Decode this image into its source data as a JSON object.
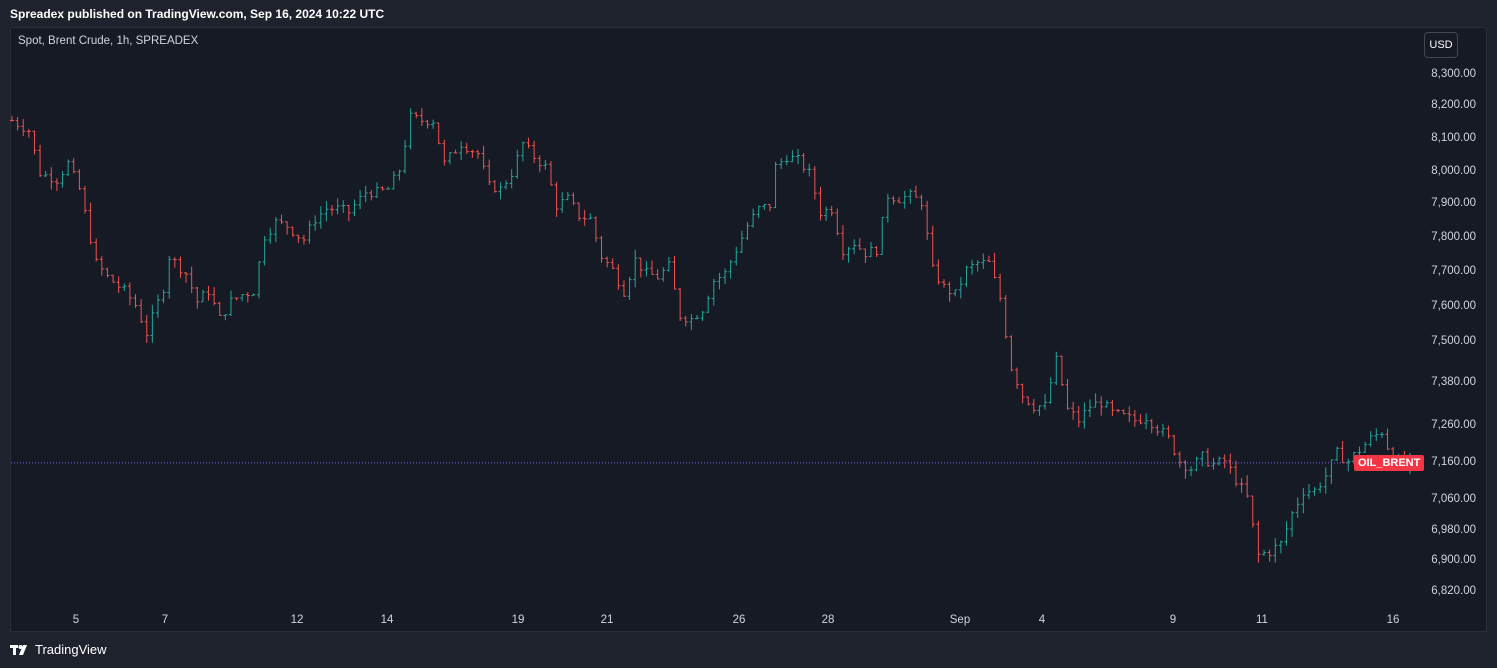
{
  "header": {
    "title": "Spreadex published on TradingView.com, Sep 16, 2024 10:22 UTC"
  },
  "legend": {
    "text": "Spot, Brent Crude, 1h, SPREADEX"
  },
  "currency_button": {
    "label": "USD"
  },
  "footer": {
    "brand": "TradingView",
    "logo_icon": "tradingview-logo-icon"
  },
  "price_tag": {
    "label": "OIL_BRENT",
    "color": "#f23645"
  },
  "colors": {
    "up": "#26a69a",
    "down": "#ef5350",
    "last_line": "#7b6cf6",
    "background": "#161a25"
  },
  "chart_data": {
    "type": "ohlc-bar",
    "title": "Spot, Brent Crude, 1h, SPREADEX",
    "y_ticks": [
      "8,300.00",
      "8,200.00",
      "8,100.00",
      "8,000.00",
      "7,900.00",
      "7,800.00",
      "7,700.00",
      "7,600.00",
      "7,500.00",
      "7,380.00",
      "7,260.00",
      "7,160.00",
      "7,060.00",
      "6,980.00",
      "6,900.00",
      "6,820.00"
    ],
    "x_ticks": [
      "5",
      "7",
      "12",
      "14",
      "19",
      "21",
      "26",
      "28",
      "Sep",
      "4",
      "9",
      "11",
      "16"
    ],
    "last_price": 7155,
    "price_path": [
      [
        0,
        8150
      ],
      [
        3,
        8120
      ],
      [
        5,
        7990
      ],
      [
        8,
        7970
      ],
      [
        10,
        8020
      ],
      [
        12,
        7940
      ],
      [
        15,
        7720
      ],
      [
        17,
        7680
      ],
      [
        20,
        7640
      ],
      [
        22,
        7600
      ],
      [
        24,
        7520
      ],
      [
        27,
        7650
      ],
      [
        28,
        7740
      ],
      [
        31,
        7690
      ],
      [
        33,
        7610
      ],
      [
        35,
        7640
      ],
      [
        37,
        7560
      ],
      [
        39,
        7610
      ],
      [
        41,
        7630
      ],
      [
        43,
        7640
      ],
      [
        45,
        7800
      ],
      [
        47,
        7840
      ],
      [
        49,
        7830
      ],
      [
        51,
        7800
      ],
      [
        52,
        7790
      ],
      [
        54,
        7850
      ],
      [
        56,
        7880
      ],
      [
        58,
        7880
      ],
      [
        60,
        7870
      ],
      [
        63,
        7930
      ],
      [
        65,
        7930
      ],
      [
        67,
        7940
      ],
      [
        69,
        8000
      ],
      [
        71,
        8160
      ],
      [
        73,
        8150
      ],
      [
        75,
        8150
      ],
      [
        77,
        8020
      ],
      [
        80,
        8080
      ],
      [
        83,
        8050
      ],
      [
        85,
        7950
      ],
      [
        87,
        7940
      ],
      [
        89,
        7990
      ],
      [
        91,
        8080
      ],
      [
        93,
        8040
      ],
      [
        95,
        8010
      ],
      [
        97,
        7890
      ],
      [
        99,
        7910
      ],
      [
        101,
        7860
      ],
      [
        103,
        7850
      ],
      [
        105,
        7740
      ],
      [
        107,
        7700
      ],
      [
        109,
        7640
      ],
      [
        111,
        7730
      ],
      [
        113,
        7690
      ],
      [
        115,
        7680
      ],
      [
        117,
        7710
      ],
      [
        119,
        7570
      ],
      [
        121,
        7560
      ],
      [
        123,
        7590
      ],
      [
        125,
        7670
      ],
      [
        127,
        7690
      ],
      [
        129,
        7760
      ],
      [
        131,
        7830
      ],
      [
        133,
        7880
      ],
      [
        135,
        7890
      ],
      [
        136,
        8010
      ],
      [
        138,
        8040
      ],
      [
        140,
        8030
      ],
      [
        142,
        7990
      ],
      [
        144,
        7870
      ],
      [
        146,
        7880
      ],
      [
        148,
        7760
      ],
      [
        150,
        7780
      ],
      [
        152,
        7750
      ],
      [
        154,
        7760
      ],
      [
        156,
        7920
      ],
      [
        158,
        7910
      ],
      [
        160,
        7920
      ],
      [
        162,
        7900
      ],
      [
        164,
        7700
      ],
      [
        166,
        7650
      ],
      [
        168,
        7630
      ],
      [
        170,
        7700
      ],
      [
        172,
        7720
      ],
      [
        174,
        7720
      ],
      [
        176,
        7620
      ],
      [
        178,
        7420
      ],
      [
        180,
        7340
      ],
      [
        182,
        7310
      ],
      [
        184,
        7310
      ],
      [
        186,
        7440
      ],
      [
        188,
        7300
      ],
      [
        190,
        7270
      ],
      [
        192,
        7310
      ],
      [
        194,
        7320
      ],
      [
        196,
        7290
      ],
      [
        198,
        7280
      ],
      [
        200,
        7270
      ],
      [
        202,
        7280
      ],
      [
        204,
        7250
      ],
      [
        206,
        7220
      ],
      [
        208,
        7160
      ],
      [
        210,
        7140
      ],
      [
        212,
        7170
      ],
      [
        214,
        7150
      ],
      [
        216,
        7160
      ],
      [
        218,
        7110
      ],
      [
        220,
        7060
      ],
      [
        222,
        6910
      ],
      [
        224,
        6920
      ],
      [
        226,
        6940
      ],
      [
        228,
        7020
      ],
      [
        230,
        7080
      ],
      [
        232,
        7080
      ],
      [
        234,
        7120
      ],
      [
        236,
        7180
      ],
      [
        238,
        7160
      ],
      [
        240,
        7190
      ],
      [
        242,
        7220
      ],
      [
        244,
        7240
      ],
      [
        246,
        7160
      ],
      [
        248,
        7150
      ],
      [
        249,
        7155
      ]
    ]
  }
}
